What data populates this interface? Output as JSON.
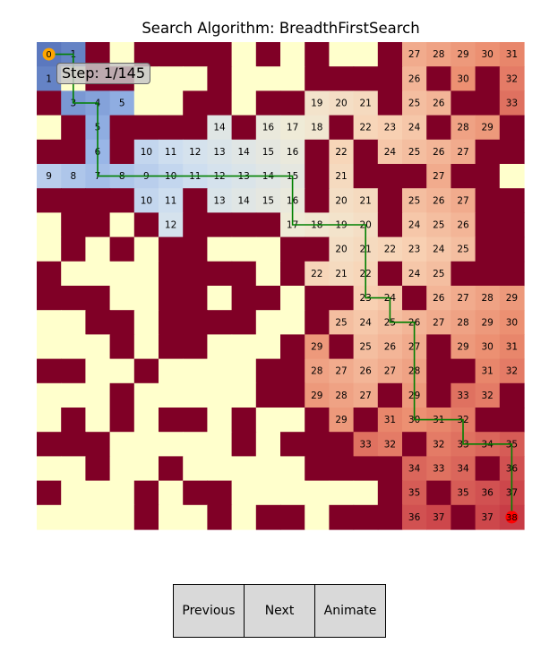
{
  "title": "Search Algorithm: BreadthFirstSearch",
  "step_label": "Step: 1/145",
  "controls": {
    "previous": "Previous",
    "next": "Next",
    "animate": "Animate"
  },
  "colors": {
    "wall": "#800026",
    "open": "#ffffcc",
    "path": "#008000",
    "start": "#ffa500",
    "goal": "#ff0000"
  },
  "grid": {
    "rows": 20,
    "cols": 20,
    "start": {
      "row": 0,
      "col": 0,
      "label": "0"
    },
    "goal": {
      "row": 19,
      "col": 19,
      "label": "38"
    },
    "cells": [
      [
        "S",
        "1",
        "#",
        "",
        "#",
        "#",
        "#",
        "#",
        "",
        "#",
        "",
        "#",
        "",
        "",
        "#",
        "27",
        "28",
        "29",
        "30",
        "31"
      ],
      [
        "1",
        "",
        "#",
        "#",
        "",
        "",
        "",
        "#",
        "",
        "",
        "",
        "#",
        "#",
        "#",
        "#",
        "26",
        "#",
        "30",
        "#",
        "32"
      ],
      [
        "#",
        "3",
        "4",
        "5",
        "",
        "",
        "#",
        "#",
        "",
        "#",
        "#",
        "19",
        "20",
        "21",
        "#",
        "25",
        "26",
        "#",
        "#",
        "33"
      ],
      [
        "",
        "#",
        "5",
        "#",
        "#",
        "#",
        "#",
        "14",
        "#",
        "16",
        "17",
        "18",
        "#",
        "22",
        "23",
        "24",
        "#",
        "28",
        "29",
        "#"
      ],
      [
        "#",
        "#",
        "6",
        "#",
        "10",
        "11",
        "12",
        "13",
        "14",
        "15",
        "16",
        "#",
        "22",
        "#",
        "24",
        "25",
        "26",
        "27",
        "#",
        "#"
      ],
      [
        "9",
        "8",
        "7",
        "8",
        "9",
        "10",
        "11",
        "12",
        "13",
        "14",
        "15",
        "#",
        "21",
        "#",
        "#",
        "#",
        "27",
        "#",
        "#",
        ""
      ],
      [
        "#",
        "#",
        "#",
        "#",
        "10",
        "11",
        "#",
        "13",
        "14",
        "15",
        "16",
        "#",
        "20",
        "21",
        "#",
        "25",
        "26",
        "27",
        "#",
        "#"
      ],
      [
        "",
        "#",
        "#",
        "",
        "#",
        "12",
        "#",
        "#",
        "#",
        "#",
        "17",
        "18",
        "19",
        "20",
        "#",
        "24",
        "25",
        "26",
        "#",
        "#"
      ],
      [
        "",
        "#",
        "",
        "#",
        "",
        "#",
        "#",
        "",
        "",
        "",
        "#",
        "#",
        "20",
        "21",
        "22",
        "23",
        "24",
        "25",
        "#",
        "#"
      ],
      [
        "#",
        "",
        "",
        "",
        "",
        "#",
        "#",
        "#",
        "#",
        "",
        "#",
        "22",
        "21",
        "22",
        "#",
        "24",
        "25",
        "#",
        "#",
        "#"
      ],
      [
        "#",
        "#",
        "#",
        "",
        "",
        "#",
        "#",
        "",
        "#",
        "#",
        "",
        "#",
        "#",
        "23",
        "24",
        "#",
        "26",
        "27",
        "28",
        "29"
      ],
      [
        "",
        "",
        "#",
        "#",
        "",
        "#",
        "#",
        "#",
        "#",
        "",
        "",
        "#",
        "25",
        "24",
        "25",
        "26",
        "27",
        "28",
        "29",
        "30"
      ],
      [
        "",
        "",
        "",
        "#",
        "",
        "#",
        "#",
        "",
        "",
        "",
        "#",
        "29",
        "#",
        "25",
        "26",
        "27",
        "#",
        "29",
        "30",
        "31"
      ],
      [
        "#",
        "#",
        "",
        "",
        "#",
        "",
        "",
        "",
        "",
        "#",
        "#",
        "28",
        "27",
        "26",
        "27",
        "28",
        "#",
        "#",
        "31",
        "32"
      ],
      [
        "",
        "",
        "",
        "#",
        "",
        "",
        "",
        "",
        "",
        "#",
        "#",
        "29",
        "28",
        "27",
        "#",
        "29",
        "#",
        "33",
        "32",
        "#"
      ],
      [
        "",
        "#",
        "",
        "#",
        "",
        "#",
        "#",
        "",
        "#",
        "",
        "",
        "#",
        "29",
        "#",
        "31",
        "30",
        "31",
        "32",
        "#",
        "#"
      ],
      [
        "#",
        "#",
        "#",
        "",
        "",
        "",
        "",
        "",
        "#",
        "",
        "#",
        "#",
        "#",
        "33",
        "32",
        "#",
        "32",
        "33",
        "34",
        "35"
      ],
      [
        "",
        "",
        "#",
        "",
        "",
        "#",
        "",
        "",
        "",
        "",
        "",
        "#",
        "#",
        "#",
        "#",
        "34",
        "33",
        "34",
        "#",
        "36"
      ],
      [
        "#",
        "",
        "",
        "",
        "#",
        "",
        "#",
        "#",
        "",
        "",
        "",
        "",
        "",
        "",
        "#",
        "35",
        "#",
        "35",
        "36",
        "37"
      ],
      [
        "",
        "",
        "",
        "",
        "#",
        "",
        "",
        "#",
        "",
        "#",
        "#",
        "",
        "#",
        "#",
        "#",
        "36",
        "37",
        "#",
        "37",
        "G"
      ]
    ],
    "path": [
      [
        0,
        0
      ],
      [
        0,
        1
      ],
      [
        1,
        1
      ],
      [
        2,
        1
      ],
      [
        2,
        2
      ],
      [
        3,
        2
      ],
      [
        4,
        2
      ],
      [
        5,
        2
      ],
      [
        5,
        3
      ],
      [
        5,
        4
      ],
      [
        5,
        5
      ],
      [
        5,
        6
      ],
      [
        5,
        7
      ],
      [
        5,
        8
      ],
      [
        5,
        9
      ],
      [
        5,
        10
      ],
      [
        6,
        10
      ],
      [
        7,
        10
      ],
      [
        7,
        11
      ],
      [
        7,
        12
      ],
      [
        7,
        13
      ],
      [
        8,
        13
      ],
      [
        9,
        13
      ],
      [
        10,
        13
      ],
      [
        10,
        14
      ],
      [
        11,
        14
      ],
      [
        11,
        15
      ],
      [
        12,
        15
      ],
      [
        13,
        15
      ],
      [
        14,
        15
      ],
      [
        15,
        15
      ],
      [
        15,
        16
      ],
      [
        15,
        17
      ],
      [
        16,
        17
      ],
      [
        16,
        18
      ],
      [
        16,
        19
      ],
      [
        17,
        19
      ],
      [
        18,
        19
      ],
      [
        19,
        19
      ]
    ]
  }
}
